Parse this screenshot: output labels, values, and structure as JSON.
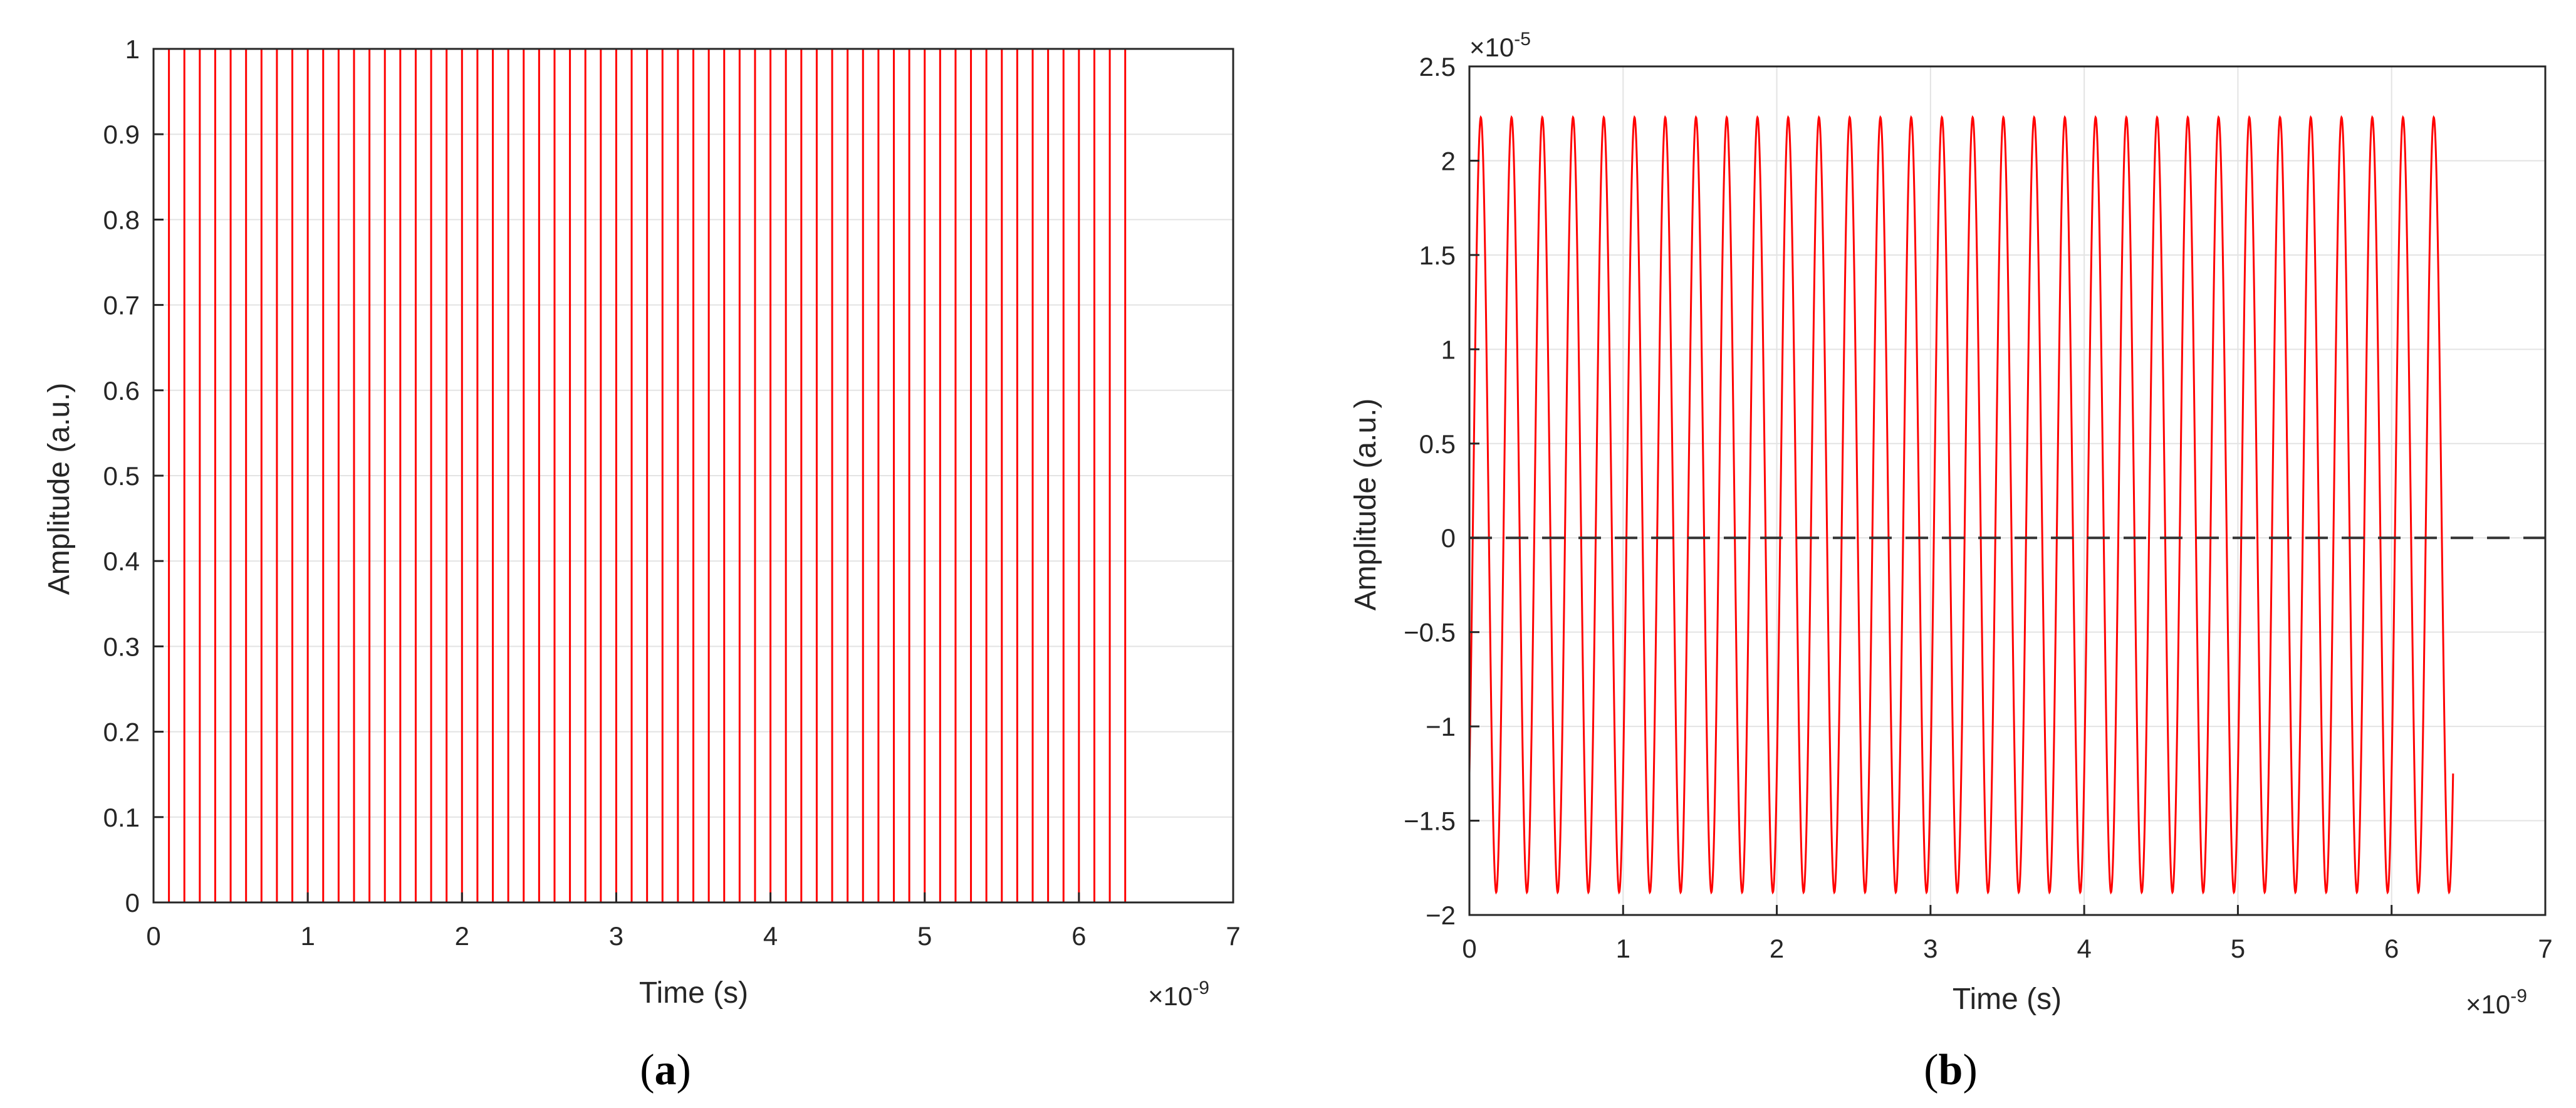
{
  "chart_data": [
    {
      "panel": "a",
      "type": "line",
      "title": "",
      "xlabel": "Time (s)",
      "ylabel": "Amplitude (a.u.)",
      "x_exponent_label": "×10",
      "x_exponent_power": "-9",
      "xlim": [
        0,
        7
      ],
      "ylim": [
        0,
        1
      ],
      "xticks": [
        0,
        1,
        2,
        3,
        4,
        5,
        6,
        7
      ],
      "xtick_labels": [
        "0",
        "1",
        "2",
        "3",
        "4",
        "5",
        "6",
        "7"
      ],
      "yticks": [
        0,
        0.1,
        0.2,
        0.3,
        0.4,
        0.5,
        0.6,
        0.7,
        0.8,
        0.9,
        1
      ],
      "ytick_labels": [
        "0",
        "0.1",
        "0.2",
        "0.3",
        "0.4",
        "0.5",
        "0.6",
        "0.7",
        "0.8",
        "0.9",
        "1"
      ],
      "grid": true,
      "series": [
        {
          "signal": "square_pulse_train",
          "color": "#ff0000",
          "period": 0.2,
          "duty_cycle": 0.5,
          "low": 0,
          "high": 1,
          "pulse_count": 32,
          "signal_end": 6.3,
          "baseline_end": 6.4
        }
      ]
    },
    {
      "panel": "b",
      "type": "line",
      "title": "",
      "xlabel": "Time (s)",
      "ylabel": "Amplitude (a.u.)",
      "x_exponent_label": "×10",
      "x_exponent_power": "-9",
      "y_exponent_label": "×10",
      "y_exponent_power": "-5",
      "xlim": [
        0,
        7
      ],
      "ylim": [
        -2,
        2.5
      ],
      "xticks": [
        0,
        1,
        2,
        3,
        4,
        5,
        6,
        7
      ],
      "xtick_labels": [
        "0",
        "1",
        "2",
        "3",
        "4",
        "5",
        "6",
        "7"
      ],
      "yticks": [
        -2,
        -1.5,
        -1,
        -0.5,
        0,
        0.5,
        1,
        1.5,
        2,
        2.5
      ],
      "ytick_labels": [
        "−2",
        "−1.5",
        "−1",
        "−0.5",
        "0",
        "0.5",
        "1",
        "1.5",
        "2",
        "2.5"
      ],
      "grid": true,
      "series": [
        {
          "signal": "sinusoid",
          "color": "#ff0000",
          "x_start": 0,
          "x_end": 6.4,
          "period": 0.2,
          "max": 2.23,
          "min": -1.88,
          "start_value": -1.25,
          "end_value": -1.25
        },
        {
          "signal": "reference_line",
          "color": "#333333",
          "style": "dashed",
          "y": 0,
          "x_start": 0,
          "x_end": 7
        }
      ]
    }
  ],
  "panel_labels": {
    "a": {
      "open": "(",
      "letter": "a",
      "close": ")"
    },
    "b": {
      "open": "(",
      "letter": "b",
      "close": ")"
    }
  }
}
